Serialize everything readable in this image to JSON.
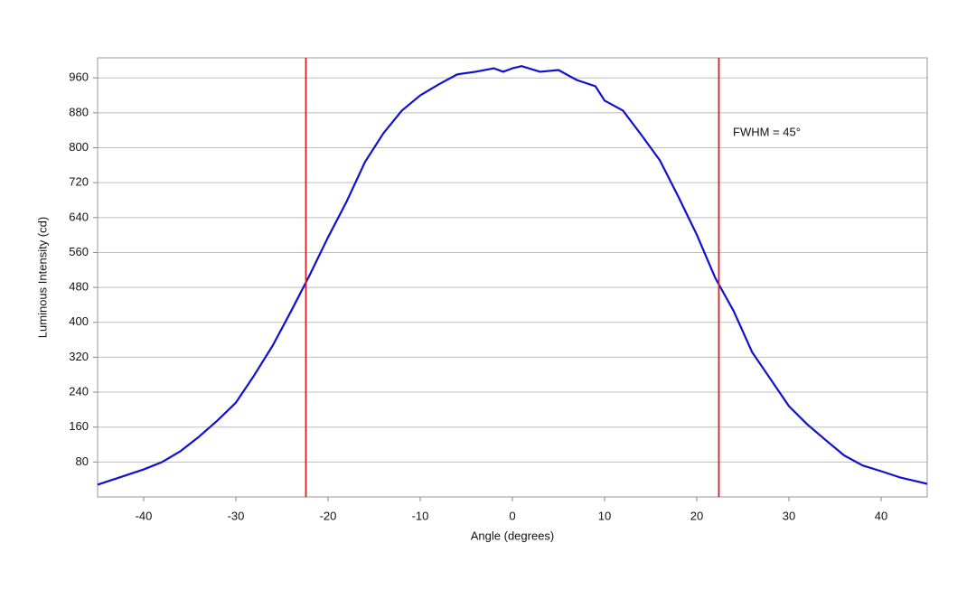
{
  "chart_data": {
    "type": "line",
    "xlabel": "Angle (degrees)",
    "ylabel": "Luminous Intensity (cd)",
    "annotation": "FWHM = 45°",
    "x": [
      -45,
      -42,
      -40,
      -38,
      -36,
      -34,
      -32,
      -30,
      -28,
      -26,
      -24,
      -22,
      -20,
      -18,
      -16,
      -14,
      -12,
      -10,
      -8,
      -6,
      -4,
      -2,
      -1,
      0,
      1,
      3,
      5,
      7,
      9,
      10,
      12,
      14,
      16,
      18,
      20,
      22,
      24,
      26,
      28,
      30,
      32,
      34,
      36,
      38,
      40,
      42,
      45
    ],
    "series": [
      {
        "color": "#1010d0",
        "values": [
          28,
          49,
          63,
          80,
          105,
          138,
          175,
          216,
          279,
          347,
          426,
          508,
          595,
          676,
          767,
          833,
          885,
          920,
          945,
          968,
          974,
          982,
          974,
          982,
          987,
          974,
          978,
          955,
          941,
          908,
          885,
          829,
          771,
          688,
          601,
          502,
          426,
          332,
          270,
          208,
          166,
          130,
          95,
          72,
          59,
          45,
          30
        ]
      }
    ],
    "vlines": [
      -22.4,
      22.4
    ],
    "vline_color": "#d42020",
    "xlim": [
      -45,
      45
    ],
    "ylim": [
      0,
      1006
    ],
    "xticks": [
      -40,
      -30,
      -20,
      -10,
      0,
      10,
      20,
      30,
      40
    ],
    "yticks": [
      80,
      160,
      240,
      320,
      400,
      480,
      560,
      640,
      720,
      800,
      880,
      960
    ],
    "grid": true
  }
}
